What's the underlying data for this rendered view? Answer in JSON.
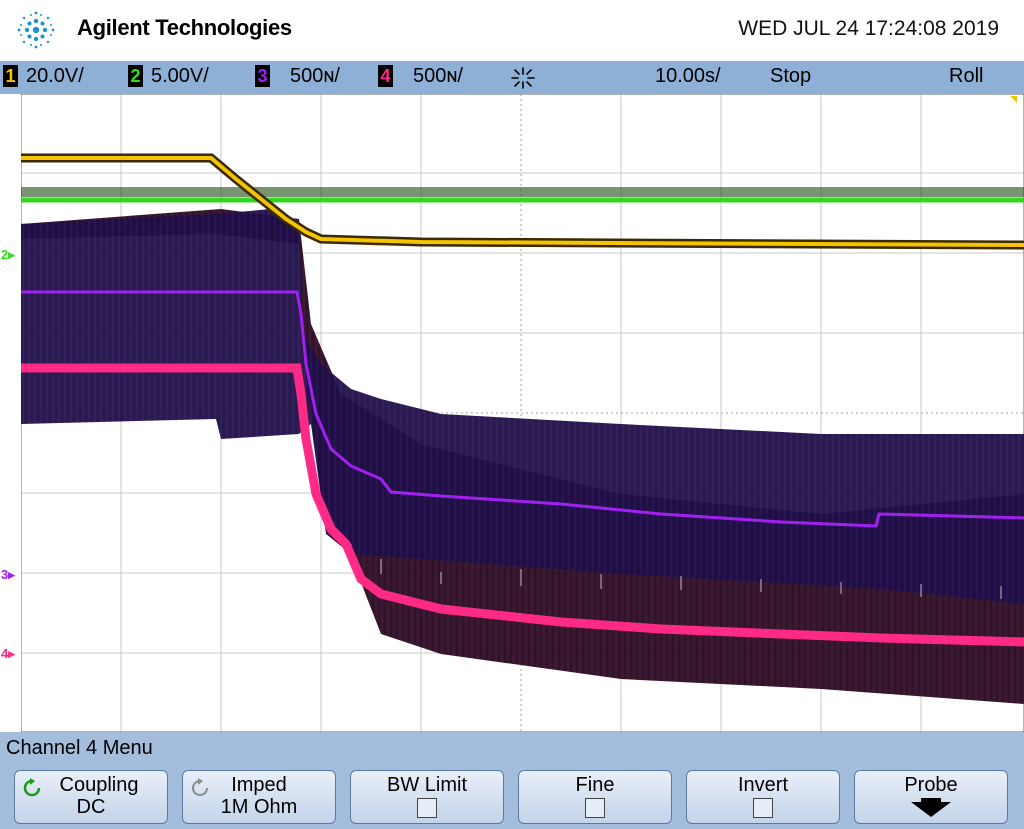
{
  "header": {
    "brand": "Agilent Technologies",
    "datetime": "WED JUL 24 17:24:08 2019"
  },
  "status": {
    "ch1": {
      "num": "1",
      "scale": "20.0V/",
      "color": "#f5c400"
    },
    "ch2": {
      "num": "2",
      "scale": "5.00V/",
      "color": "#33dd22"
    },
    "ch3": {
      "num": "3",
      "scale": "500ɴ/",
      "color": "#a020f0"
    },
    "ch4": {
      "num": "4",
      "scale": "500ɴ/",
      "color": "#ff2a86"
    },
    "trigger_icon": "trigger-icon",
    "timebase": "10.00s/",
    "run_state": "Stop",
    "mode": "Roll"
  },
  "markers": {
    "ch2": "2",
    "ch3": "3",
    "ch4": "4"
  },
  "menu": {
    "title": "Channel 4  Menu",
    "softkeys": [
      {
        "label": "Coupling",
        "value": "DC"
      },
      {
        "label": "Imped",
        "value": "1M Ohm"
      },
      {
        "label": "BW Limit"
      },
      {
        "label": "Fine"
      },
      {
        "label": "Invert"
      },
      {
        "label": "Probe"
      }
    ]
  }
}
